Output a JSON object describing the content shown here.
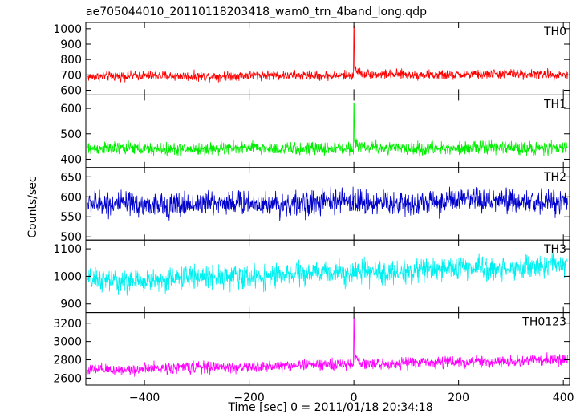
{
  "chart_data": {
    "type": "line",
    "title": "ae705044010_20110118203418_wam0_trn_4band_long.qdp",
    "xlabel": "Time [sec] 0 = 2011/01/18 20:34:18",
    "ylabel": "Counts/sec",
    "xlim": [
      -512,
      412
    ],
    "x_ticks": [
      -400,
      -200,
      0,
      200,
      400
    ],
    "x_tick_labels": [
      "−400",
      "−200",
      "0",
      "200",
      "400"
    ],
    "panels": [
      {
        "name": "TH0",
        "color": "#ff0000",
        "ylim": [
          590,
          1020
        ],
        "y_ticks": [
          600,
          700,
          800,
          900,
          1000
        ],
        "y_tick_labels": [
          "600",
          "700",
          "800",
          "900",
          "1000"
        ],
        "baseline_start": 690,
        "baseline_end": 705,
        "noise": 22,
        "peak_x": 0,
        "peak_y": 1020,
        "post_peak_decay": 40
      },
      {
        "name": "TH1",
        "color": "#00ee00",
        "ylim": [
          380,
          640
        ],
        "y_ticks": [
          400,
          500,
          600
        ],
        "y_tick_labels": [
          "400",
          "500",
          "600"
        ],
        "baseline_start": 440,
        "baseline_end": 445,
        "noise": 18,
        "peak_x": 0,
        "peak_y": 620,
        "post_peak_decay": 15
      },
      {
        "name": "TH2",
        "color": "#0000cc",
        "ylim": [
          500,
          665
        ],
        "y_ticks": [
          500,
          550,
          600,
          650
        ],
        "y_tick_labels": [
          "500",
          "550",
          "600",
          "650"
        ],
        "baseline_start": 580,
        "baseline_end": 590,
        "noise": 22,
        "peak_x": 0,
        "peak_y": 600,
        "post_peak_decay": 0
      },
      {
        "name": "TH3",
        "color": "#00f0f0",
        "ylim": [
          880,
          1120
        ],
        "y_ticks": [
          900,
          1000,
          1100
        ],
        "y_tick_labels": [
          "900",
          "1000",
          "1100"
        ],
        "baseline_start": 980,
        "baseline_end": 1040,
        "noise": 30,
        "peak_x": 0,
        "peak_y": 1000,
        "post_peak_decay": 0
      },
      {
        "name": "TH0123",
        "color": "#ff00ff",
        "ylim": [
          2560,
          3280
        ],
        "y_ticks": [
          2600,
          2800,
          3000,
          3200
        ],
        "y_tick_labels": [
          "2600",
          "2800",
          "3000",
          "3200"
        ],
        "baseline_start": 2690,
        "baseline_end": 2800,
        "noise": 45,
        "peak_x": 0,
        "peak_y": 3260,
        "post_peak_decay": 90
      }
    ],
    "grid": false,
    "legend": "none"
  }
}
